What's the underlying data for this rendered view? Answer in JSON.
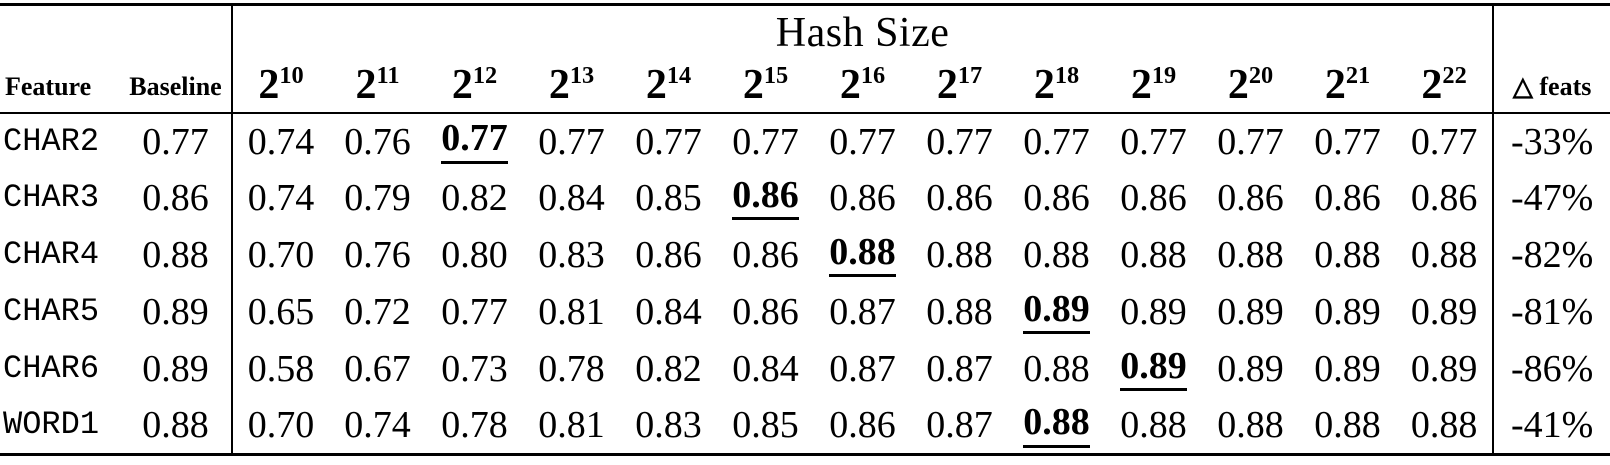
{
  "table": {
    "title": "Hash Size",
    "columns": {
      "feature": "Feature",
      "baseline": "Baseline",
      "delta": "△ feats"
    },
    "hash_columns": [
      {
        "base": "2",
        "exp": "10"
      },
      {
        "base": "2",
        "exp": "11"
      },
      {
        "base": "2",
        "exp": "12"
      },
      {
        "base": "2",
        "exp": "13"
      },
      {
        "base": "2",
        "exp": "14"
      },
      {
        "base": "2",
        "exp": "15"
      },
      {
        "base": "2",
        "exp": "16"
      },
      {
        "base": "2",
        "exp": "17"
      },
      {
        "base": "2",
        "exp": "18"
      },
      {
        "base": "2",
        "exp": "19"
      },
      {
        "base": "2",
        "exp": "20"
      },
      {
        "base": "2",
        "exp": "21"
      },
      {
        "base": "2",
        "exp": "22"
      }
    ],
    "rows": [
      {
        "feature": "CHAR2",
        "baseline": "0.77",
        "values": [
          "0.74",
          "0.76",
          "0.77",
          "0.77",
          "0.77",
          "0.77",
          "0.77",
          "0.77",
          "0.77",
          "0.77",
          "0.77",
          "0.77",
          "0.77"
        ],
        "best_index": 2,
        "delta": "-33%"
      },
      {
        "feature": "CHAR3",
        "baseline": "0.86",
        "values": [
          "0.74",
          "0.79",
          "0.82",
          "0.84",
          "0.85",
          "0.86",
          "0.86",
          "0.86",
          "0.86",
          "0.86",
          "0.86",
          "0.86",
          "0.86"
        ],
        "best_index": 5,
        "delta": "-47%"
      },
      {
        "feature": "CHAR4",
        "baseline": "0.88",
        "values": [
          "0.70",
          "0.76",
          "0.80",
          "0.83",
          "0.86",
          "0.86",
          "0.88",
          "0.88",
          "0.88",
          "0.88",
          "0.88",
          "0.88",
          "0.88"
        ],
        "best_index": 6,
        "delta": "-82%"
      },
      {
        "feature": "CHAR5",
        "baseline": "0.89",
        "values": [
          "0.65",
          "0.72",
          "0.77",
          "0.81",
          "0.84",
          "0.86",
          "0.87",
          "0.88",
          "0.89",
          "0.89",
          "0.89",
          "0.89",
          "0.89"
        ],
        "best_index": 8,
        "delta": "-81%"
      },
      {
        "feature": "CHAR6",
        "baseline": "0.89",
        "values": [
          "0.58",
          "0.67",
          "0.73",
          "0.78",
          "0.82",
          "0.84",
          "0.87",
          "0.87",
          "0.88",
          "0.89",
          "0.89",
          "0.89",
          "0.89"
        ],
        "best_index": 9,
        "delta": "-86%"
      },
      {
        "feature": "WORD1",
        "baseline": "0.88",
        "values": [
          "0.70",
          "0.74",
          "0.78",
          "0.81",
          "0.83",
          "0.85",
          "0.86",
          "0.87",
          "0.88",
          "0.88",
          "0.88",
          "0.88",
          "0.88"
        ],
        "best_index": 8,
        "delta": "-41%"
      }
    ],
    "colors": {
      "text": "#000000",
      "rule": "#000000",
      "background": "#ffffff"
    }
  },
  "chart_data": {
    "type": "table",
    "title": "Hash Size",
    "columns": [
      "Feature",
      "Baseline",
      "2^10",
      "2^11",
      "2^12",
      "2^13",
      "2^14",
      "2^15",
      "2^16",
      "2^17",
      "2^18",
      "2^19",
      "2^20",
      "2^21",
      "2^22",
      "△ feats"
    ],
    "rows": [
      [
        "CHAR2",
        0.77,
        0.74,
        0.76,
        0.77,
        0.77,
        0.77,
        0.77,
        0.77,
        0.77,
        0.77,
        0.77,
        0.77,
        0.77,
        0.77,
        "-33%"
      ],
      [
        "CHAR3",
        0.86,
        0.74,
        0.79,
        0.82,
        0.84,
        0.85,
        0.86,
        0.86,
        0.86,
        0.86,
        0.86,
        0.86,
        0.86,
        0.86,
        "-47%"
      ],
      [
        "CHAR4",
        0.88,
        0.7,
        0.76,
        0.8,
        0.83,
        0.86,
        0.86,
        0.88,
        0.88,
        0.88,
        0.88,
        0.88,
        0.88,
        0.88,
        "-82%"
      ],
      [
        "CHAR5",
        0.89,
        0.65,
        0.72,
        0.77,
        0.81,
        0.84,
        0.86,
        0.87,
        0.88,
        0.89,
        0.89,
        0.89,
        0.89,
        0.89,
        "-81%"
      ],
      [
        "CHAR6",
        0.89,
        0.58,
        0.67,
        0.73,
        0.78,
        0.82,
        0.84,
        0.87,
        0.87,
        0.88,
        0.89,
        0.89,
        0.89,
        0.89,
        "-86%"
      ],
      [
        "WORD1",
        0.88,
        0.7,
        0.74,
        0.78,
        0.81,
        0.83,
        0.85,
        0.86,
        0.87,
        0.88,
        0.88,
        0.88,
        0.88,
        0.88,
        "-41%"
      ]
    ],
    "bold_underlined_best": [
      [
        "CHAR2",
        "2^12"
      ],
      [
        "CHAR3",
        "2^15"
      ],
      [
        "CHAR4",
        "2^16"
      ],
      [
        "CHAR5",
        "2^18"
      ],
      [
        "CHAR6",
        "2^19"
      ],
      [
        "WORD1",
        "2^18"
      ]
    ]
  }
}
